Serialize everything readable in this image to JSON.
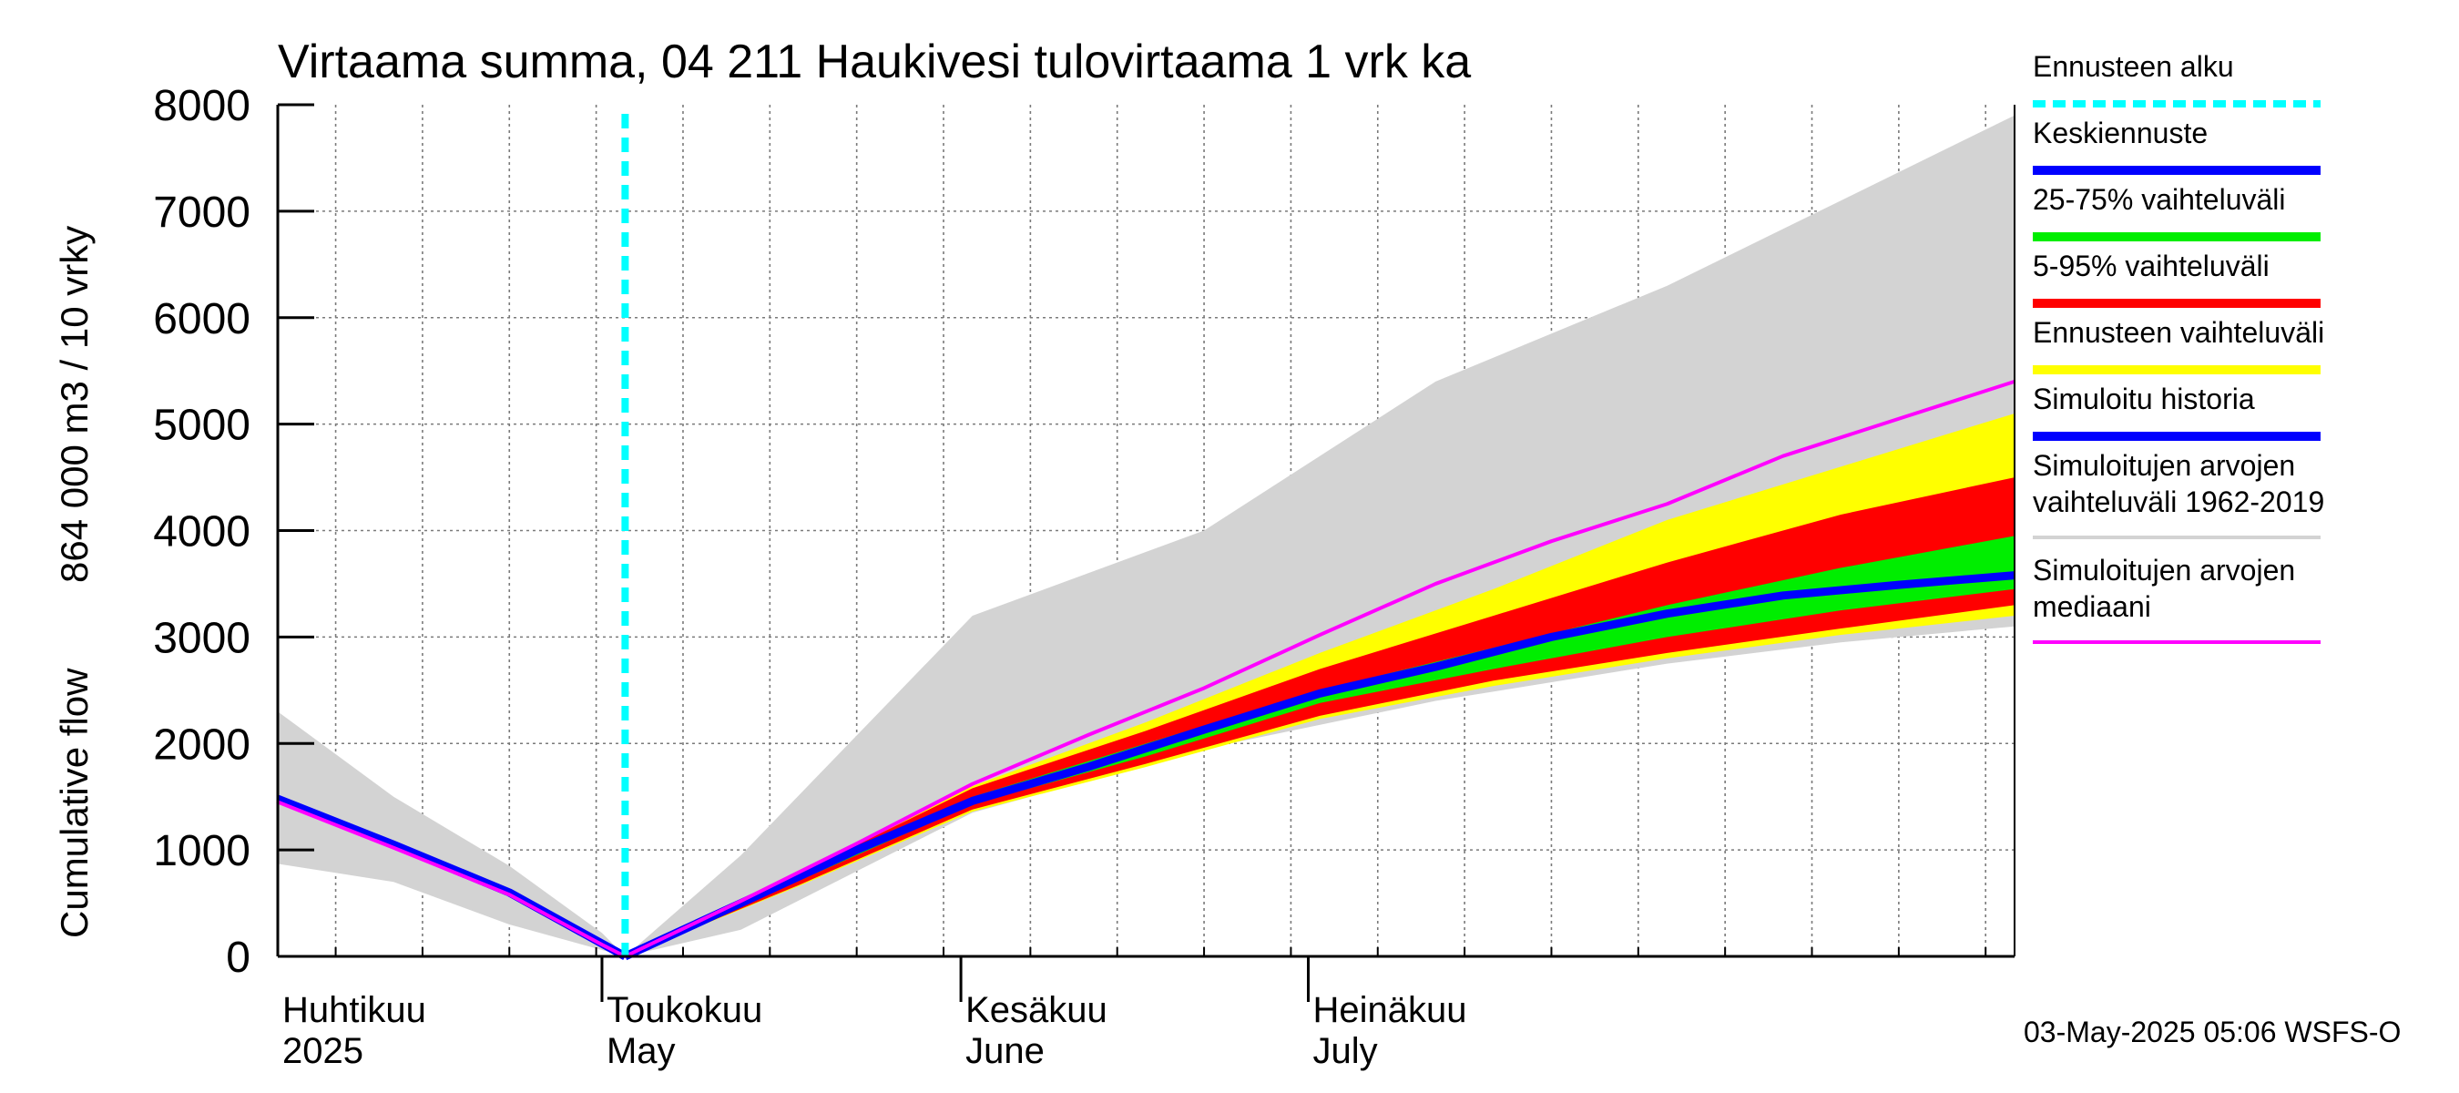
{
  "chart_data": {
    "type": "area",
    "title": "Virtaama summa, 04 211 Haukivesi tulovirtaama 1 vrk ka",
    "ylabel_line1": "Cumulative flow",
    "ylabel_line2": "864 000 m3 / 10 vrky",
    "ylim": [
      0,
      8000
    ],
    "yticks": [
      "0",
      "1000",
      "2000",
      "3000",
      "4000",
      "5000",
      "6000",
      "7000",
      "8000"
    ],
    "xlim": [
      -30,
      120
    ],
    "x_unit": "days relative to forecast start (2025-05-03)",
    "months": [
      {
        "line1": "Huhtikuu",
        "line2": "2025",
        "day": -32
      },
      {
        "line1": "Toukokuu",
        "line2": "May",
        "day": -2
      },
      {
        "line1": "Kesäkuu",
        "line2": "June",
        "day": 29
      },
      {
        "line1": "Heinäkuu",
        "line2": "July",
        "day": 59
      }
    ],
    "forecast_start_day": 0,
    "footer": "03-May-2025 05:06 WSFS-O",
    "series": {
      "hist_range": {
        "x": [
          -30,
          -20,
          -10,
          -2,
          0,
          10,
          30,
          50,
          70,
          90,
          105,
          120
        ],
        "upper": [
          2300,
          1500,
          850,
          220,
          0,
          950,
          3200,
          4000,
          5400,
          6300,
          7100,
          7900
        ],
        "lower": [
          870,
          700,
          300,
          60,
          0,
          250,
          1350,
          1950,
          2400,
          2750,
          2950,
          3100
        ]
      },
      "forecast_range": {
        "x": [
          0,
          15,
          30,
          45,
          60,
          75,
          90,
          105,
          120
        ],
        "upper": [
          0,
          800,
          1600,
          2200,
          2850,
          3450,
          4100,
          4600,
          5100
        ],
        "lower": [
          0,
          660,
          1360,
          1780,
          2230,
          2540,
          2800,
          3020,
          3200
        ]
      },
      "p5_95": {
        "x": [
          0,
          15,
          30,
          45,
          60,
          75,
          90,
          105,
          120
        ],
        "upper": [
          0,
          780,
          1580,
          2120,
          2700,
          3200,
          3700,
          4150,
          4500
        ],
        "lower": [
          0,
          670,
          1380,
          1810,
          2260,
          2590,
          2850,
          3080,
          3300
        ]
      },
      "p25_75": {
        "x": [
          0,
          15,
          30,
          45,
          60,
          75,
          90,
          105,
          120
        ],
        "upper": [
          0,
          740,
          1500,
          2000,
          2500,
          2900,
          3300,
          3650,
          3950
        ],
        "lower": [
          0,
          710,
          1430,
          1880,
          2380,
          2700,
          3000,
          3250,
          3450
        ]
      },
      "mean_forecast": {
        "x": [
          0,
          10,
          20,
          30,
          40,
          50,
          60,
          70,
          80,
          90,
          100,
          110,
          120
        ],
        "y": [
          0,
          500,
          1000,
          1460,
          1780,
          2130,
          2470,
          2720,
          3000,
          3220,
          3390,
          3490,
          3580
        ]
      },
      "sim_history": {
        "x": [
          -30,
          -20,
          -10,
          -2,
          0
        ],
        "y": [
          1480,
          1050,
          600,
          120,
          0
        ]
      },
      "median": {
        "x": [
          -30,
          -20,
          -10,
          -2,
          0,
          10,
          20,
          30,
          40,
          50,
          60,
          70,
          80,
          90,
          100,
          110,
          120
        ],
        "y": [
          1450,
          1020,
          580,
          110,
          0,
          520,
          1060,
          1620,
          2080,
          2520,
          3020,
          3500,
          3900,
          4250,
          4700,
          5050,
          5400
        ]
      }
    },
    "colors": {
      "hist_range": "#d3d3d3",
      "forecast_range": "#ffff00",
      "p5_95": "#ff0000",
      "p25_75": "#00ee00",
      "mean_forecast": "#0000ff",
      "sim_history": "#0000ff",
      "median": "#ff00ff",
      "forecast_start": "#00ffff"
    },
    "legend": [
      {
        "key": "forecast_start",
        "label": "Ennusteen alku",
        "style": "dashed"
      },
      {
        "key": "mean_forecast",
        "label": "Keskiennuste",
        "style": "solid"
      },
      {
        "key": "p25_75",
        "label": "25-75% vaihteluväli",
        "style": "solid"
      },
      {
        "key": "p5_95",
        "label": "5-95% vaihteluväli",
        "style": "solid"
      },
      {
        "key": "forecast_range",
        "label": "Ennusteen vaihteluväli",
        "style": "solid"
      },
      {
        "key": "sim_history",
        "label": "Simuloitu historia",
        "style": "solid"
      },
      {
        "key": "hist_range",
        "label": "Simuloitujen arvojen",
        "label2": "vaihteluväli 1962-2019",
        "style": "thin"
      },
      {
        "key": "median",
        "label": "Simuloitujen arvojen",
        "label2": "mediaani",
        "style": "thin"
      }
    ]
  }
}
